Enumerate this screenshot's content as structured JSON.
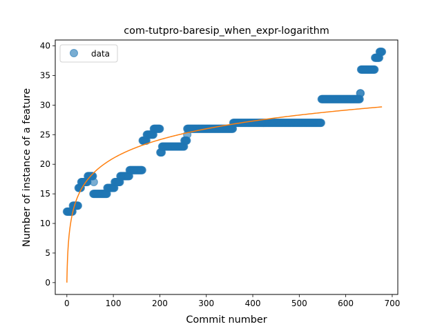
{
  "chart_data": {
    "type": "scatter",
    "title": "com-tutpro-baresip_when_expr-logarithm",
    "xlabel": "Commit number",
    "ylabel": "Number of instance of a feature",
    "xlim": [
      -25,
      712
    ],
    "ylim": [
      -2,
      41
    ],
    "xticks": [
      0,
      100,
      200,
      300,
      400,
      500,
      600,
      700
    ],
    "yticks": [
      0,
      5,
      10,
      15,
      20,
      25,
      30,
      35,
      40
    ],
    "grid": false,
    "legend": {
      "placement": "top-left",
      "entries": [
        "data"
      ]
    },
    "colors": {
      "data": "#1f77b4",
      "fit": "#ff7f0e"
    },
    "series": [
      {
        "name": "data",
        "kind": "scatter",
        "step_points": [
          [
            0,
            12
          ],
          [
            13,
            13
          ],
          [
            25,
            16
          ],
          [
            31,
            17
          ],
          [
            45,
            18
          ],
          [
            57,
            15
          ],
          [
            87,
            16
          ],
          [
            103,
            17
          ],
          [
            115,
            18
          ],
          [
            135,
            19
          ],
          [
            163,
            24
          ],
          [
            172,
            25
          ],
          [
            187,
            26
          ],
          [
            201,
            22
          ],
          [
            205,
            23
          ],
          [
            253,
            24
          ],
          [
            259,
            26
          ],
          [
            358,
            27
          ],
          [
            548,
            31
          ],
          [
            631,
            32
          ],
          [
            633,
            36
          ],
          [
            663,
            38
          ],
          [
            673,
            39
          ],
          [
            678,
            39
          ]
        ],
        "outliers": [
          [
            58,
            17
          ],
          [
            259,
            25
          ]
        ]
      },
      {
        "kind": "line",
        "model": "logarithm",
        "x_range": [
          0,
          678
        ],
        "y_at_start": 0,
        "y_at_end": 29.7
      }
    ]
  }
}
